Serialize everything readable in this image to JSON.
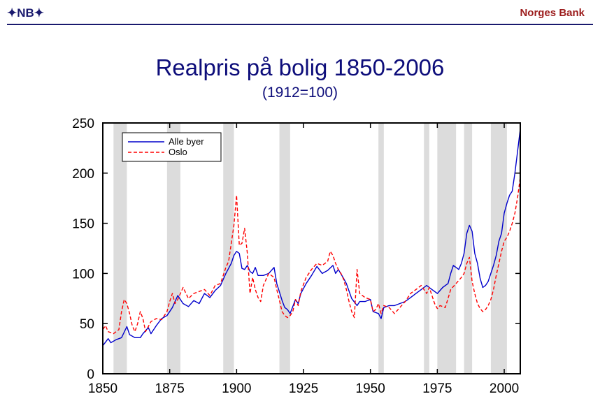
{
  "header": {
    "logo_text": "✦NB✦",
    "brand": "Norges Bank"
  },
  "colors": {
    "header_rule": "#1a1a6e",
    "title": "#0d0d7a",
    "brand": "#9b1b1b"
  },
  "chart_data": {
    "type": "line",
    "title": "Realpris på bolig 1850-2006",
    "subtitle": "(1912=100)",
    "xlabel": "",
    "ylabel": "",
    "xlim": [
      1850,
      2006
    ],
    "ylim": [
      0,
      250
    ],
    "xticks": [
      "1850",
      "1875",
      "1900",
      "1925",
      "1950",
      "1975",
      "2000"
    ],
    "yticks": [
      "0",
      "50",
      "100",
      "150",
      "200",
      "250"
    ],
    "legend_position": "top-left",
    "grid": false,
    "shaded_periods": [
      [
        1854,
        1859
      ],
      [
        1874,
        1879
      ],
      [
        1895,
        1899
      ],
      [
        1916,
        1920
      ],
      [
        1953,
        1955
      ],
      [
        1970,
        1972
      ],
      [
        1975,
        1982
      ],
      [
        1985,
        1988
      ],
      [
        1995,
        2001
      ]
    ],
    "series": [
      {
        "name": "Alle byer",
        "color": "#0000cc",
        "style": "solid",
        "points": [
          [
            1850,
            28
          ],
          [
            1852,
            35
          ],
          [
            1853,
            31
          ],
          [
            1855,
            34
          ],
          [
            1857,
            36
          ],
          [
            1859,
            47
          ],
          [
            1860,
            39
          ],
          [
            1862,
            36
          ],
          [
            1864,
            36
          ],
          [
            1865,
            40
          ],
          [
            1867,
            46
          ],
          [
            1868,
            40
          ],
          [
            1870,
            48
          ],
          [
            1872,
            55
          ],
          [
            1874,
            58
          ],
          [
            1876,
            66
          ],
          [
            1878,
            78
          ],
          [
            1880,
            70
          ],
          [
            1882,
            67
          ],
          [
            1884,
            73
          ],
          [
            1886,
            70
          ],
          [
            1888,
            80
          ],
          [
            1890,
            76
          ],
          [
            1892,
            83
          ],
          [
            1894,
            88
          ],
          [
            1896,
            100
          ],
          [
            1898,
            110
          ],
          [
            1899,
            118
          ],
          [
            1900,
            122
          ],
          [
            1901,
            120
          ],
          [
            1902,
            105
          ],
          [
            1903,
            104
          ],
          [
            1904,
            108
          ],
          [
            1905,
            102
          ],
          [
            1906,
            100
          ],
          [
            1907,
            106
          ],
          [
            1908,
            98
          ],
          [
            1910,
            98
          ],
          [
            1912,
            100
          ],
          [
            1914,
            106
          ],
          [
            1915,
            90
          ],
          [
            1917,
            73
          ],
          [
            1918,
            66
          ],
          [
            1919,
            64
          ],
          [
            1920,
            60
          ],
          [
            1921,
            67
          ],
          [
            1922,
            74
          ],
          [
            1923,
            70
          ],
          [
            1924,
            80
          ],
          [
            1926,
            90
          ],
          [
            1928,
            98
          ],
          [
            1930,
            107
          ],
          [
            1932,
            100
          ],
          [
            1934,
            103
          ],
          [
            1936,
            108
          ],
          [
            1937,
            100
          ],
          [
            1938,
            104
          ],
          [
            1940,
            95
          ],
          [
            1941,
            90
          ],
          [
            1943,
            75
          ],
          [
            1945,
            68
          ],
          [
            1946,
            72
          ],
          [
            1948,
            72
          ],
          [
            1950,
            74
          ],
          [
            1951,
            62
          ],
          [
            1953,
            60
          ],
          [
            1954,
            55
          ],
          [
            1955,
            66
          ],
          [
            1957,
            68
          ],
          [
            1959,
            68
          ],
          [
            1961,
            70
          ],
          [
            1963,
            72
          ],
          [
            1965,
            76
          ],
          [
            1967,
            80
          ],
          [
            1969,
            84
          ],
          [
            1970,
            86
          ],
          [
            1971,
            88
          ],
          [
            1972,
            86
          ],
          [
            1973,
            84
          ],
          [
            1974,
            82
          ],
          [
            1975,
            80
          ],
          [
            1977,
            86
          ],
          [
            1979,
            90
          ],
          [
            1980,
            100
          ],
          [
            1981,
            108
          ],
          [
            1982,
            106
          ],
          [
            1983,
            104
          ],
          [
            1984,
            110
          ],
          [
            1985,
            120
          ],
          [
            1986,
            140
          ],
          [
            1987,
            148
          ],
          [
            1988,
            142
          ],
          [
            1989,
            120
          ],
          [
            1990,
            110
          ],
          [
            1991,
            95
          ],
          [
            1992,
            86
          ],
          [
            1993,
            88
          ],
          [
            1994,
            92
          ],
          [
            1995,
            100
          ],
          [
            1996,
            108
          ],
          [
            1997,
            118
          ],
          [
            1998,
            132
          ],
          [
            1999,
            140
          ],
          [
            2000,
            160
          ],
          [
            2001,
            170
          ],
          [
            2002,
            178
          ],
          [
            2003,
            182
          ],
          [
            2004,
            200
          ],
          [
            2005,
            222
          ],
          [
            2006,
            244
          ]
        ]
      },
      {
        "name": "Oslo",
        "color": "#ff0000",
        "style": "dashed",
        "points": [
          [
            1850,
            44
          ],
          [
            1851,
            48
          ],
          [
            1852,
            42
          ],
          [
            1854,
            40
          ],
          [
            1856,
            44
          ],
          [
            1857,
            62
          ],
          [
            1858,
            74
          ],
          [
            1859,
            70
          ],
          [
            1860,
            60
          ],
          [
            1861,
            48
          ],
          [
            1862,
            42
          ],
          [
            1863,
            50
          ],
          [
            1864,
            62
          ],
          [
            1865,
            55
          ],
          [
            1866,
            42
          ],
          [
            1868,
            52
          ],
          [
            1870,
            55
          ],
          [
            1872,
            54
          ],
          [
            1874,
            62
          ],
          [
            1875,
            72
          ],
          [
            1876,
            80
          ],
          [
            1877,
            70
          ],
          [
            1878,
            74
          ],
          [
            1880,
            86
          ],
          [
            1882,
            75
          ],
          [
            1884,
            80
          ],
          [
            1886,
            82
          ],
          [
            1888,
            84
          ],
          [
            1890,
            78
          ],
          [
            1892,
            88
          ],
          [
            1894,
            90
          ],
          [
            1896,
            106
          ],
          [
            1897,
            112
          ],
          [
            1898,
            130
          ],
          [
            1899,
            148
          ],
          [
            1900,
            178
          ],
          [
            1901,
            128
          ],
          [
            1902,
            130
          ],
          [
            1903,
            145
          ],
          [
            1904,
            120
          ],
          [
            1905,
            80
          ],
          [
            1906,
            96
          ],
          [
            1907,
            84
          ],
          [
            1908,
            76
          ],
          [
            1909,
            72
          ],
          [
            1910,
            88
          ],
          [
            1912,
            100
          ],
          [
            1913,
            98
          ],
          [
            1914,
            96
          ],
          [
            1915,
            84
          ],
          [
            1917,
            62
          ],
          [
            1918,
            58
          ],
          [
            1919,
            56
          ],
          [
            1920,
            58
          ],
          [
            1921,
            62
          ],
          [
            1922,
            74
          ],
          [
            1923,
            68
          ],
          [
            1924,
            82
          ],
          [
            1926,
            96
          ],
          [
            1928,
            104
          ],
          [
            1930,
            110
          ],
          [
            1932,
            108
          ],
          [
            1934,
            112
          ],
          [
            1935,
            122
          ],
          [
            1936,
            118
          ],
          [
            1937,
            110
          ],
          [
            1938,
            104
          ],
          [
            1939,
            100
          ],
          [
            1940,
            94
          ],
          [
            1941,
            84
          ],
          [
            1942,
            72
          ],
          [
            1943,
            62
          ],
          [
            1944,
            56
          ],
          [
            1945,
            104
          ],
          [
            1946,
            80
          ],
          [
            1948,
            76
          ],
          [
            1950,
            74
          ],
          [
            1951,
            62
          ],
          [
            1952,
            64
          ],
          [
            1953,
            70
          ],
          [
            1954,
            60
          ],
          [
            1955,
            68
          ],
          [
            1957,
            66
          ],
          [
            1959,
            60
          ],
          [
            1961,
            66
          ],
          [
            1963,
            72
          ],
          [
            1965,
            80
          ],
          [
            1967,
            84
          ],
          [
            1969,
            88
          ],
          [
            1970,
            84
          ],
          [
            1971,
            80
          ],
          [
            1972,
            86
          ],
          [
            1973,
            78
          ],
          [
            1974,
            70
          ],
          [
            1975,
            65
          ],
          [
            1976,
            68
          ],
          [
            1978,
            66
          ],
          [
            1980,
            84
          ],
          [
            1982,
            90
          ],
          [
            1984,
            96
          ],
          [
            1985,
            100
          ],
          [
            1986,
            110
          ],
          [
            1987,
            116
          ],
          [
            1988,
            92
          ],
          [
            1989,
            80
          ],
          [
            1990,
            70
          ],
          [
            1991,
            65
          ],
          [
            1992,
            62
          ],
          [
            1993,
            64
          ],
          [
            1994,
            68
          ],
          [
            1995,
            74
          ],
          [
            1996,
            84
          ],
          [
            1997,
            98
          ],
          [
            1998,
            110
          ],
          [
            1999,
            122
          ],
          [
            2000,
            132
          ],
          [
            2001,
            136
          ],
          [
            2002,
            142
          ],
          [
            2003,
            150
          ],
          [
            2004,
            160
          ],
          [
            2005,
            176
          ],
          [
            2006,
            196
          ]
        ]
      }
    ]
  }
}
